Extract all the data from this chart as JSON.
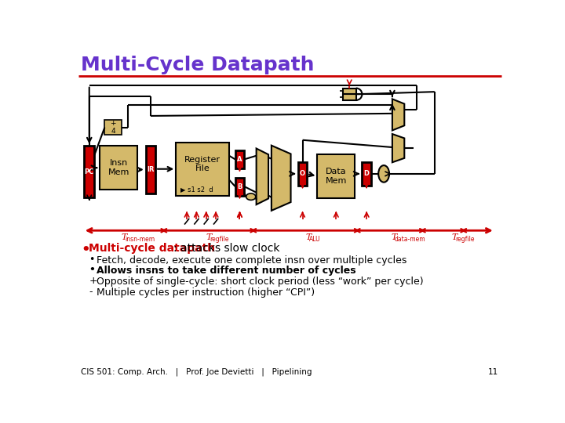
{
  "title": "Multi-Cycle Datapath",
  "title_color": "#6633cc",
  "bg_color": "#ffffff",
  "separator_color": "#cc0000",
  "tan_color": "#d4b96a",
  "red_color": "#cc0000",
  "black": "#000000",
  "bullet1_bold": "Multi-cycle datapath",
  "bullet1_rest": ": attacks slow clock",
  "bullet2": "Fetch, decode, execute one complete insn over multiple cycles",
  "bullet3": "Allows insns to take different number of cycles",
  "plus_line": "Opposite of single-cycle: short clock period (less “work” per cycle)",
  "minus_line": "Multiple cycles per instruction (higher “CPI”)",
  "footer": "CIS 501: Comp. Arch.   |   Prof. Joe Devietti   |   Pipelining",
  "footer_num": "11"
}
